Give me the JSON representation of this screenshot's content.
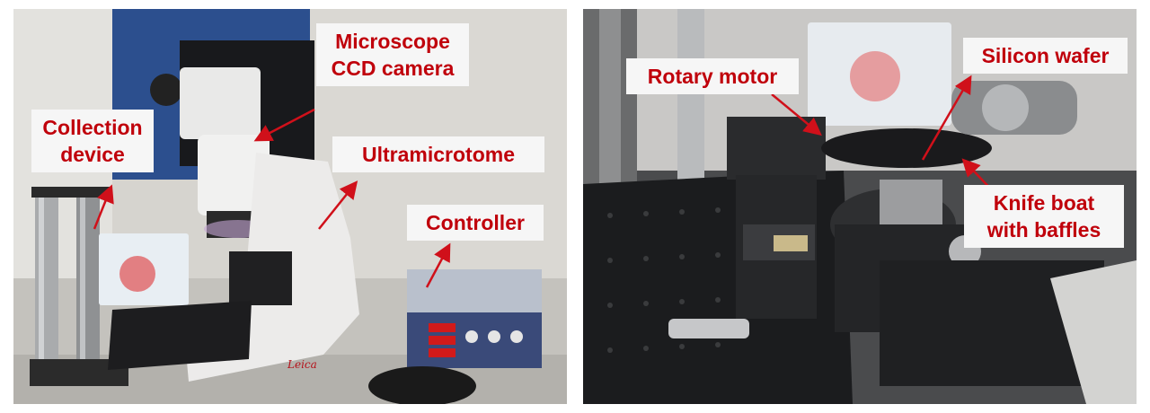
{
  "left_panel": {
    "labels": {
      "microscope": [
        "Microscope",
        "CCD camera"
      ],
      "collection": [
        "Collection",
        "device"
      ],
      "ultramicrotome": "Ultramicrotome",
      "controller": "Controller"
    },
    "device_brand": "Leica"
  },
  "right_panel": {
    "labels": {
      "rotary_motor": "Rotary motor",
      "silicon_wafer": "Silicon wafer",
      "knife_boat": [
        "Knife boat",
        "with baffles"
      ]
    }
  },
  "colors": {
    "label_text": "#c0000b",
    "label_background": "#f6f6f6",
    "arrow": "#d0101a"
  }
}
